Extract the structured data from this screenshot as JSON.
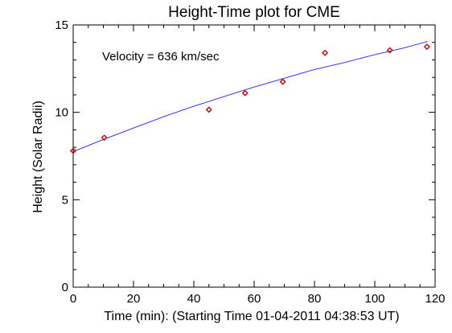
{
  "chart_data": {
    "type": "scatter",
    "title": "Height-Time plot for CME",
    "xlabel": "Time (min): (Starting Time 01-04-2011 04:38:53 UT)",
    "ylabel": "Height (Solar Radii)",
    "xlim": [
      0,
      120
    ],
    "ylim": [
      0,
      15
    ],
    "xticks": [
      0,
      20,
      40,
      60,
      80,
      100,
      120
    ],
    "yticks": [
      0,
      5,
      10,
      15
    ],
    "annotation": "Velocity = 636 km/sec",
    "grid": false,
    "series": [
      {
        "type": "scatter",
        "marker": "diamond",
        "color": "#cc0000",
        "x": [
          0.0,
          10.3,
          45.0,
          57.0,
          69.5,
          83.5,
          105.0,
          117.3
        ],
        "y": [
          7.8,
          8.55,
          10.15,
          11.1,
          11.75,
          13.4,
          13.55,
          13.75
        ]
      },
      {
        "type": "line",
        "color": "#2222ff",
        "x": [
          0,
          10,
          20,
          30,
          40,
          50,
          60,
          70,
          80,
          90,
          100,
          110,
          117.5
        ],
        "y": [
          7.75,
          8.45,
          9.1,
          9.75,
          10.35,
          10.9,
          11.45,
          11.95,
          12.45,
          12.85,
          13.3,
          13.7,
          14.05
        ]
      }
    ]
  }
}
